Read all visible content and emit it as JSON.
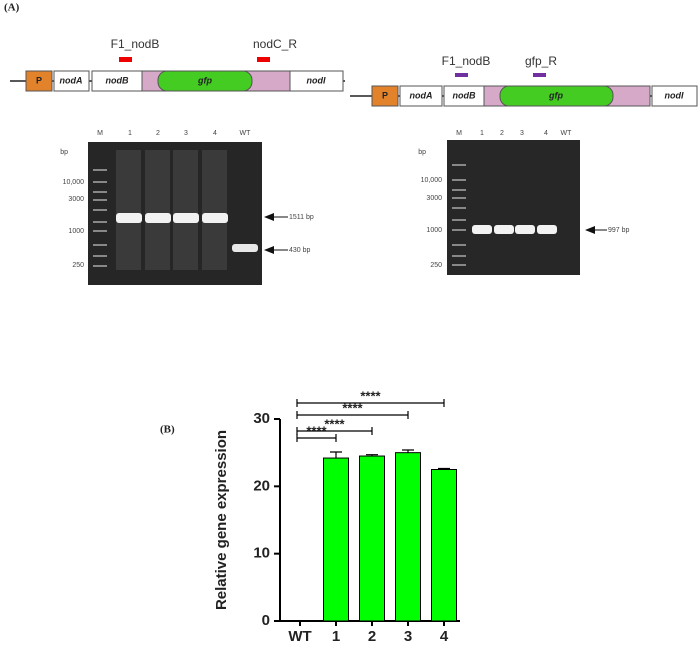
{
  "panel_a": {
    "label": "(A)",
    "construct_1": {
      "primers": [
        "F1_nodB",
        "nodC_R"
      ],
      "genes": [
        "P",
        "nodA",
        "nodB",
        "gfp",
        "nodI"
      ]
    },
    "construct_2": {
      "primers": [
        "F1_nodB",
        "gfp_R"
      ],
      "genes": [
        "P",
        "nodA",
        "nodB",
        "gfp",
        "nodI"
      ]
    },
    "gel_1": {
      "unit": "bp",
      "lanes": [
        "M",
        "1",
        "2",
        "3",
        "4",
        "WT"
      ],
      "markers": [
        "10,000",
        "3000",
        "1000",
        "250"
      ],
      "bands": [
        "1511 bp",
        "430 bp"
      ]
    },
    "gel_2": {
      "unit": "bp",
      "lanes": [
        "M",
        "1",
        "2",
        "3",
        "4",
        "WT"
      ],
      "markers": [
        "10,000",
        "3000",
        "1000",
        "250"
      ],
      "bands": [
        "997 bp"
      ]
    }
  },
  "chart_data": {
    "type": "bar",
    "panel_label": "(B)",
    "y_label": "Relative gene expression",
    "categories": [
      "WT",
      "1",
      "2",
      "3",
      "4"
    ],
    "values": [
      0,
      24.2,
      24.5,
      25.0,
      22.5
    ],
    "errors": [
      null,
      0.9,
      0.2,
      0.4,
      0.15
    ],
    "color": "#00ff00",
    "ylim": [
      0,
      30
    ],
    "yticks": [
      0,
      10,
      20,
      30
    ],
    "significance": [
      "****",
      "****",
      "****",
      "****"
    ]
  }
}
